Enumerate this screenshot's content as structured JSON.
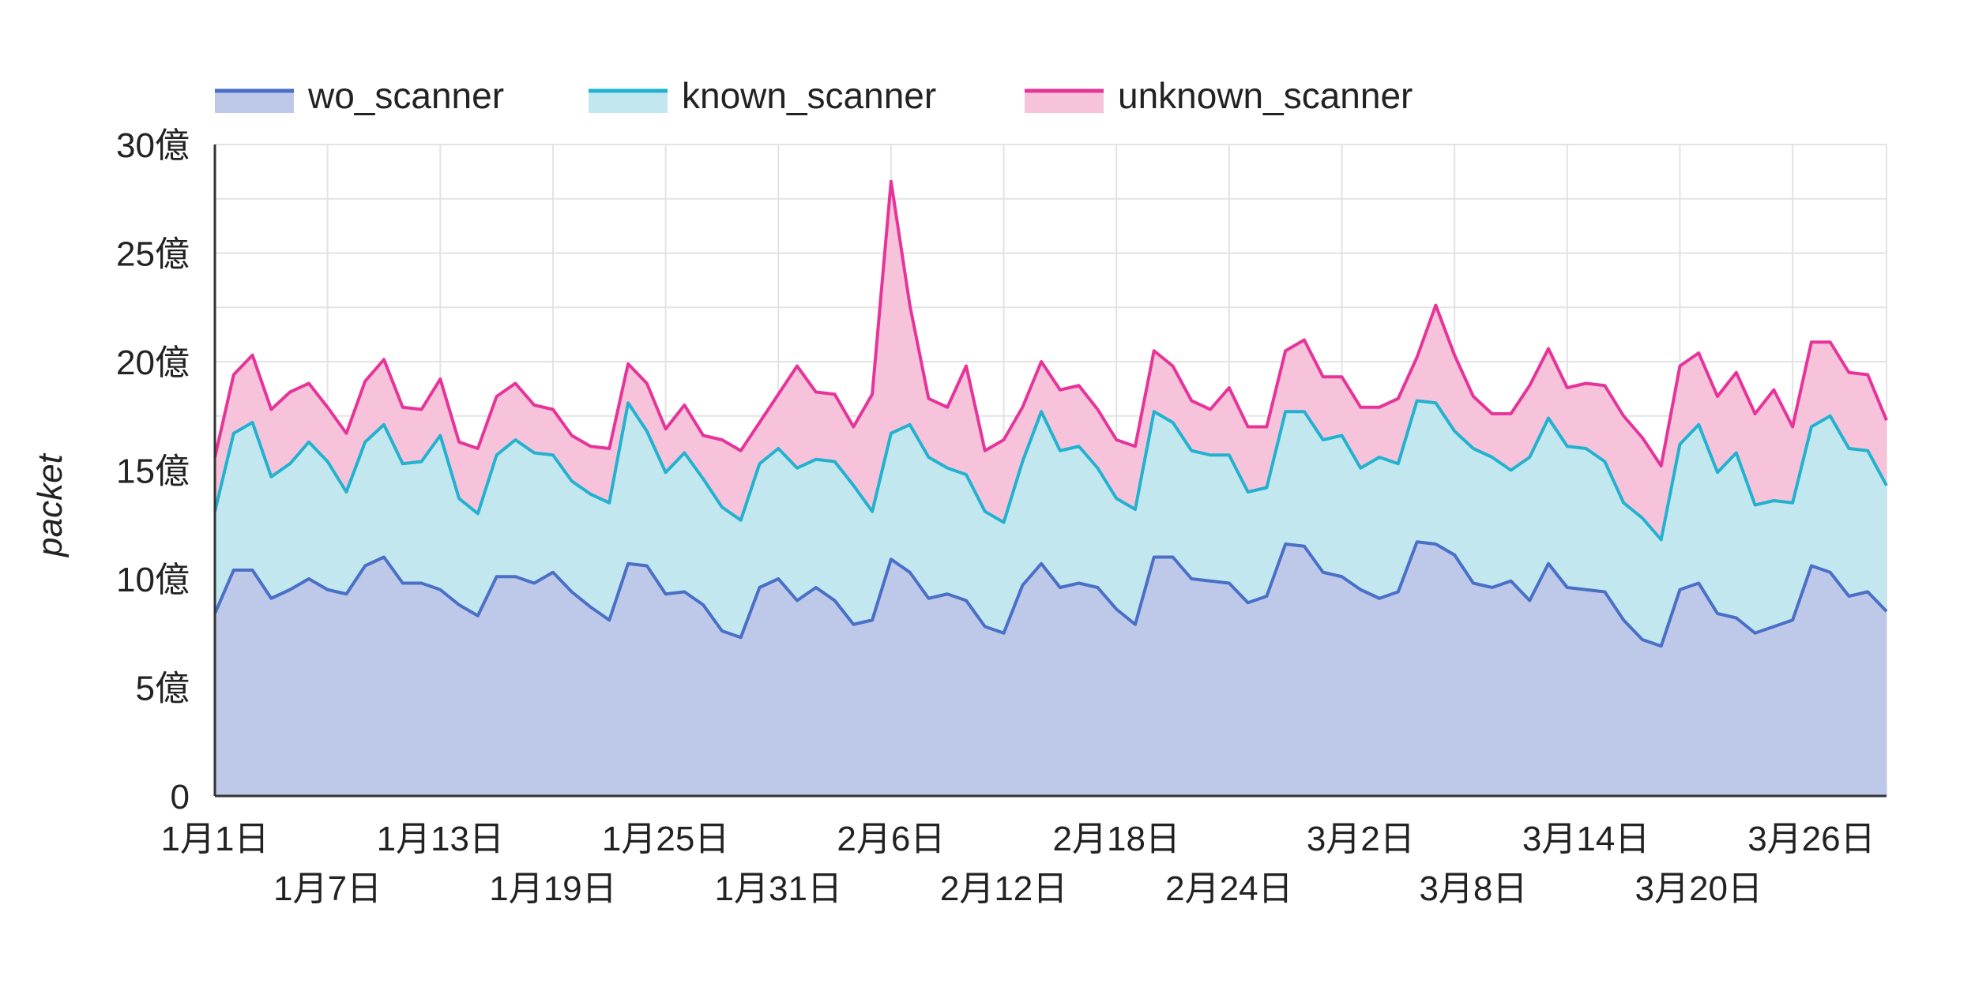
{
  "chart_data": {
    "type": "area",
    "stacked": true,
    "title": "",
    "xlabel": "",
    "ylabel": "packet",
    "ylim": [
      0,
      30
    ],
    "y_unit": "億",
    "yticks": [
      0,
      5,
      10,
      15,
      20,
      25,
      30
    ],
    "ytick_labels": [
      "0",
      "5億",
      "10億",
      "15億",
      "20億",
      "25億",
      "30億"
    ],
    "grid": true,
    "legend_position": "top-left",
    "x": [
      "1月1日",
      "1月2日",
      "1月3日",
      "1月4日",
      "1月5日",
      "1月6日",
      "1月7日",
      "1月8日",
      "1月9日",
      "1月10日",
      "1月11日",
      "1月12日",
      "1月13日",
      "1月14日",
      "1月15日",
      "1月16日",
      "1月17日",
      "1月18日",
      "1月19日",
      "1月20日",
      "1月21日",
      "1月22日",
      "1月23日",
      "1月24日",
      "1月25日",
      "1月26日",
      "1月27日",
      "1月28日",
      "1月29日",
      "1月30日",
      "1月31日",
      "2月1日",
      "2月2日",
      "2月3日",
      "2月4日",
      "2月5日",
      "2月6日",
      "2月7日",
      "2月8日",
      "2月9日",
      "2月10日",
      "2月11日",
      "2月12日",
      "2月13日",
      "2月14日",
      "2月15日",
      "2月16日",
      "2月17日",
      "2月18日",
      "2月19日",
      "2月20日",
      "2月21日",
      "2月22日",
      "2月23日",
      "2月24日",
      "2月25日",
      "2月26日",
      "2月27日",
      "2月28日",
      "2月29日",
      "3月1日",
      "3月2日",
      "3月3日",
      "3月4日",
      "3月5日",
      "3月6日",
      "3月7日",
      "3月8日",
      "3月9日",
      "3月10日",
      "3月11日",
      "3月12日",
      "3月13日",
      "3月14日",
      "3月15日",
      "3月16日",
      "3月17日",
      "3月18日",
      "3月19日",
      "3月20日",
      "3月21日",
      "3月22日",
      "3月23日",
      "3月24日",
      "3月25日",
      "3月26日",
      "3月27日",
      "3月28日",
      "3月29日",
      "3月30日"
    ],
    "xticks_top": [
      "1月1日",
      "1月13日",
      "1月25日",
      "2月6日",
      "2月18日",
      "3月2日",
      "3月14日",
      "3月26日"
    ],
    "xticks_bottom": [
      "1月7日",
      "1月19日",
      "1月31日",
      "2月12日",
      "2月24日",
      "3月8日",
      "3月20日"
    ],
    "series": [
      {
        "name": "wo_scanner",
        "color": "#4a6fc7",
        "fill": "#bec8e8",
        "values": [
          8.4,
          10.4,
          10.4,
          9.1,
          9.5,
          10,
          9.5,
          9.3,
          10.6,
          11,
          9.8,
          9.8,
          9.5,
          8.8,
          8.3,
          10.1,
          10.1,
          9.8,
          10.3,
          9.4,
          8.7,
          8.1,
          10.7,
          10.6,
          9.3,
          9.4,
          8.8,
          7.6,
          7.3,
          9.6,
          10,
          9,
          9.6,
          9,
          7.9,
          8.1,
          10.9,
          10.3,
          9.1,
          9.3,
          9,
          7.8,
          7.5,
          9.7,
          10.7,
          9.6,
          9.8,
          9.6,
          8.6,
          7.9,
          11,
          11,
          10,
          9.9,
          9.8,
          8.9,
          9.2,
          11.6,
          11.5,
          10.3,
          10.1,
          9.5,
          9.1,
          9.4,
          11.7,
          11.6,
          11.1,
          9.8,
          9.6,
          9.9,
          9,
          10.7,
          9.6,
          9.5,
          9.4,
          8.1,
          7.2,
          6.9,
          9.5,
          9.8,
          8.4,
          8.2,
          7.5,
          7.8,
          8.1,
          10.6,
          10.3,
          9.2,
          9.4,
          8.5
        ]
      },
      {
        "name": "known_scanner",
        "color": "#22b2cf",
        "fill": "#c3e7ee",
        "values": [
          4.7,
          6.3,
          6.8,
          5.6,
          5.8,
          6.3,
          5.9,
          4.7,
          5.7,
          6.1,
          5.5,
          5.6,
          7.1,
          4.9,
          4.7,
          5.6,
          6.3,
          6,
          5.4,
          5.1,
          5.2,
          5.4,
          7.4,
          6.2,
          5.6,
          6.4,
          5.8,
          5.7,
          5.4,
          5.7,
          6,
          6.1,
          5.9,
          6.4,
          6.4,
          5,
          5.8,
          6.8,
          6.5,
          5.8,
          5.8,
          5.3,
          5.1,
          5.7,
          7,
          6.3,
          6.3,
          5.5,
          5.1,
          5.3,
          6.7,
          6.2,
          5.9,
          5.8,
          5.9,
          5.1,
          5,
          6.1,
          6.2,
          6.1,
          6.5,
          5.6,
          6.5,
          5.9,
          6.5,
          6.5,
          5.7,
          6.2,
          6,
          5.1,
          6.6,
          6.7,
          6.5,
          6.5,
          6,
          5.4,
          5.6,
          4.9,
          6.7,
          7.3,
          6.5,
          7.6,
          5.9,
          5.8,
          5.4,
          6.4,
          7.2,
          6.8,
          6.5,
          5.8
        ]
      },
      {
        "name": "unknown_scanner",
        "color": "#e6349a",
        "fill": "#f6c3db",
        "values": [
          2.5,
          2.7,
          3.1,
          3.1,
          3.3,
          2.7,
          2.5,
          2.7,
          2.8,
          3,
          2.6,
          2.4,
          2.6,
          2.6,
          3,
          2.7,
          2.6,
          2.2,
          2.1,
          2.1,
          2.2,
          2.5,
          1.8,
          2.2,
          2,
          2.2,
          2,
          3.1,
          3.2,
          1.9,
          2.5,
          4.7,
          3.1,
          3.1,
          2.7,
          5.4,
          11.6,
          5.5,
          2.7,
          2.8,
          5,
          2.8,
          3.8,
          2.5,
          2.3,
          2.8,
          2.8,
          2.7,
          2.7,
          2.9,
          2.8,
          2.6,
          2.3,
          2.1,
          3.1,
          3,
          2.8,
          2.8,
          3.3,
          2.9,
          2.7,
          2.8,
          2.3,
          3,
          2,
          4.5,
          3.5,
          2.4,
          2,
          2.6,
          3.3,
          3.2,
          2.7,
          3,
          3.5,
          4,
          3.7,
          3.4,
          3.6,
          3.3,
          3.5,
          3.7,
          4.2,
          5.1,
          3.5,
          3.9,
          3.4,
          3.5,
          3.5,
          3
        ]
      }
    ]
  }
}
